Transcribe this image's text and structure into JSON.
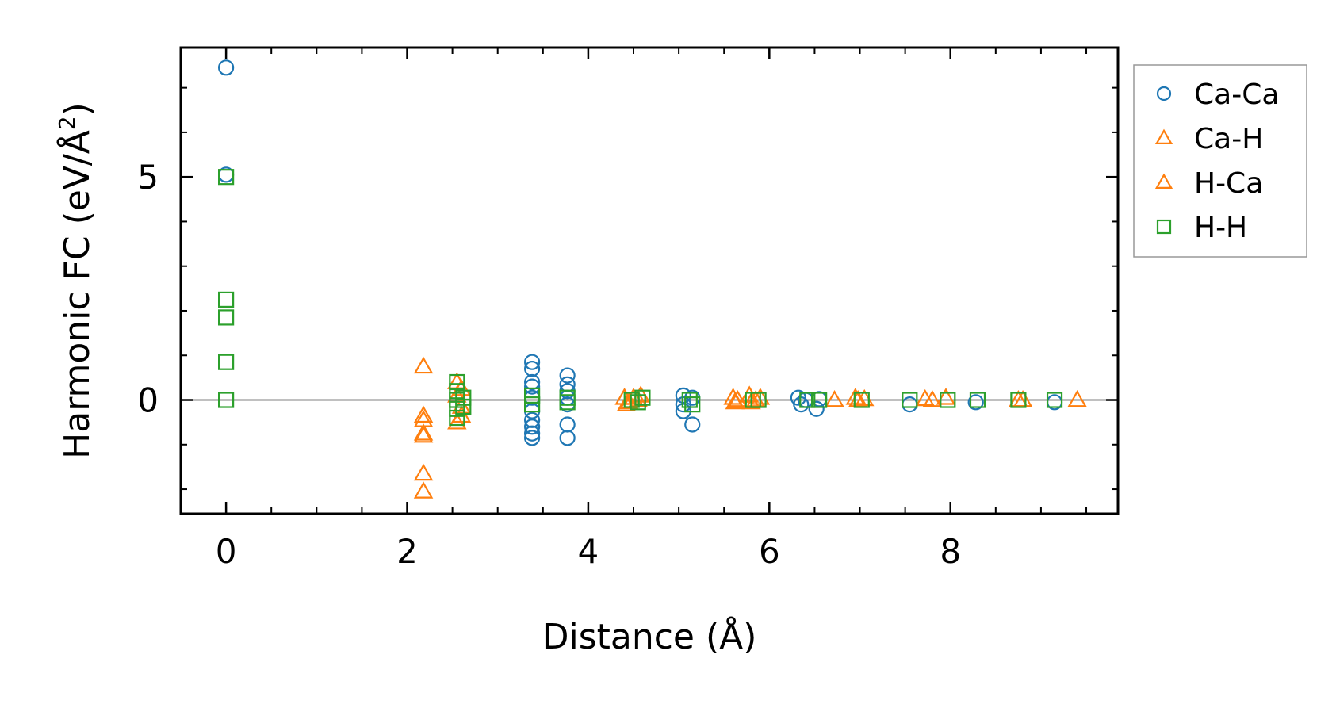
{
  "chart_data": {
    "type": "scatter",
    "title": "",
    "xlabel": "Distance (Å)",
    "ylabel_main": "Harmonic FC (eV/Å",
    "ylabel_sup": "2",
    "ylabel_close": ")",
    "xlim": [
      -0.5,
      9.85
    ],
    "ylim": [
      -2.55,
      7.9
    ],
    "x_ticks": [
      0,
      2,
      4,
      6,
      8
    ],
    "x_tick_labels": [
      "0",
      "2",
      "4",
      "6",
      "8"
    ],
    "x_minor_step": 0.5,
    "y_ticks": [
      0,
      5
    ],
    "y_tick_labels": [
      "0",
      "5"
    ],
    "y_minor_step": 1,
    "zero_line": true,
    "legend_position": "outside-right",
    "series": [
      {
        "name": "Ca-Ca",
        "marker": "circle",
        "color": "#1f77b4",
        "points": [
          [
            0,
            7.45
          ],
          [
            0,
            5.05
          ],
          [
            3.38,
            0.85
          ],
          [
            3.38,
            0.7
          ],
          [
            3.38,
            0.4
          ],
          [
            3.38,
            0.3
          ],
          [
            3.38,
            0.05
          ],
          [
            3.38,
            -0.25
          ],
          [
            3.38,
            -0.45
          ],
          [
            3.38,
            -0.6
          ],
          [
            3.38,
            -0.75
          ],
          [
            3.38,
            -0.85
          ],
          [
            3.77,
            0.55
          ],
          [
            3.77,
            0.35
          ],
          [
            3.77,
            0.2
          ],
          [
            3.77,
            0.05
          ],
          [
            3.77,
            -0.1
          ],
          [
            3.77,
            -0.55
          ],
          [
            3.77,
            -0.85
          ],
          [
            5.05,
            0.1
          ],
          [
            5.05,
            -0.1
          ],
          [
            5.05,
            -0.25
          ],
          [
            5.15,
            -0.55
          ],
          [
            5.15,
            0.05
          ],
          [
            6.32,
            0.05
          ],
          [
            6.35,
            -0.1
          ],
          [
            6.4,
            0.0
          ],
          [
            6.52,
            -0.2
          ],
          [
            6.55,
            0.02
          ],
          [
            7.55,
            -0.1
          ],
          [
            8.28,
            -0.05
          ],
          [
            9.15,
            -0.05
          ]
        ]
      },
      {
        "name": "Ca-H",
        "marker": "triangle",
        "color": "#ff7f0e",
        "points": [
          [
            2.18,
            0.75
          ],
          [
            2.18,
            -0.45
          ],
          [
            2.18,
            -0.75
          ],
          [
            2.18,
            -1.65
          ],
          [
            2.18,
            -2.05
          ],
          [
            2.55,
            0.4
          ],
          [
            2.55,
            -0.5
          ],
          [
            2.6,
            0.25
          ],
          [
            2.6,
            -0.35
          ],
          [
            4.4,
            0.05
          ],
          [
            4.42,
            -0.1
          ],
          [
            4.55,
            0.0
          ],
          [
            4.58,
            0.1
          ],
          [
            5.6,
            0.05
          ],
          [
            5.62,
            -0.05
          ],
          [
            5.78,
            0.1
          ],
          [
            5.8,
            -0.05
          ],
          [
            5.9,
            0.05
          ],
          [
            6.72,
            0.0
          ],
          [
            6.95,
            0.05
          ],
          [
            7.05,
            0.02
          ],
          [
            7.72,
            0.02
          ],
          [
            7.95,
            0.05
          ],
          [
            8.75,
            0.0
          ],
          [
            9.4,
            0.0
          ]
        ]
      },
      {
        "name": "H-Ca",
        "marker": "triangle",
        "color": "#ff7f0e",
        "points": [
          [
            2.18,
            -0.35
          ],
          [
            2.18,
            -0.8
          ],
          [
            2.55,
            0.1
          ],
          [
            2.6,
            -0.15
          ],
          [
            4.45,
            -0.05
          ],
          [
            4.5,
            0.05
          ],
          [
            5.65,
            0.0
          ],
          [
            5.85,
            0.0
          ],
          [
            6.98,
            0.0
          ],
          [
            7.8,
            0.0
          ],
          [
            8.8,
            0.0
          ]
        ]
      },
      {
        "name": "H-H",
        "marker": "square",
        "color": "#2ca02c",
        "points": [
          [
            0,
            5.0
          ],
          [
            0,
            2.25
          ],
          [
            0,
            1.85
          ],
          [
            0,
            0.85
          ],
          [
            0,
            0.0
          ],
          [
            2.55,
            0.4
          ],
          [
            2.55,
            0.2
          ],
          [
            2.55,
            0.0
          ],
          [
            2.55,
            -0.2
          ],
          [
            2.55,
            -0.4
          ],
          [
            2.62,
            0.05
          ],
          [
            2.62,
            -0.15
          ],
          [
            3.38,
            0.1
          ],
          [
            3.38,
            -0.1
          ],
          [
            3.77,
            0.05
          ],
          [
            3.77,
            -0.05
          ],
          [
            4.48,
            0.0
          ],
          [
            4.55,
            -0.05
          ],
          [
            4.6,
            0.05
          ],
          [
            5.12,
            0.0
          ],
          [
            5.15,
            -0.1
          ],
          [
            5.82,
            0.0
          ],
          [
            5.88,
            0.0
          ],
          [
            6.42,
            0.0
          ],
          [
            6.55,
            0.0
          ],
          [
            7.02,
            0.0
          ],
          [
            7.55,
            0.0
          ],
          [
            7.97,
            0.0
          ],
          [
            8.3,
            0.0
          ],
          [
            8.75,
            0.0
          ],
          [
            9.15,
            0.0
          ]
        ]
      }
    ]
  }
}
